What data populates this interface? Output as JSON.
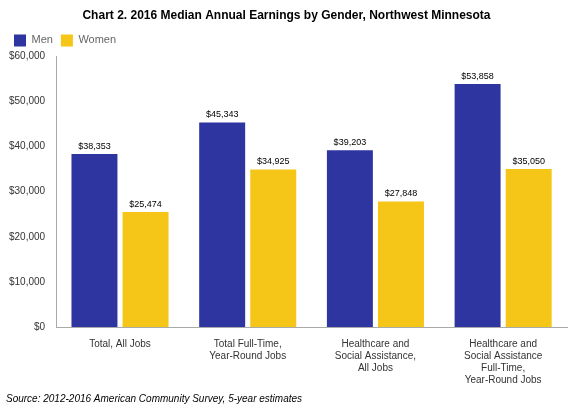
{
  "chart_data": {
    "type": "bar",
    "title": "Chart 2. 2016 Median Annual Earnings by Gender, Northwest Minnesota",
    "categories": [
      "Total, All Jobs",
      "Total Full-Time,\nYear-Round Jobs",
      "Healthcare and\nSocial Assistance,\nAll Jobs",
      "Healthcare and\nSocial Assistance\nFull-Time,\nYear-Round Jobs"
    ],
    "series": [
      {
        "name": "Men",
        "color": "#2E35A0",
        "values": [
          38353,
          45343,
          39203,
          53858
        ],
        "value_labels": [
          "$38,353",
          "$45,343",
          "$39,203",
          "$53,858"
        ]
      },
      {
        "name": "Women",
        "color": "#F5C518",
        "values": [
          25474,
          34925,
          27848,
          35050
        ],
        "value_labels": [
          "$25,474",
          "$34,925",
          "$27,848",
          "$35,050"
        ]
      }
    ],
    "ylim": [
      0,
      60000
    ],
    "yticks": [
      {
        "value": 0,
        "label": "$0"
      },
      {
        "value": 10000,
        "label": "$10,000"
      },
      {
        "value": 20000,
        "label": "$20,000"
      },
      {
        "value": 30000,
        "label": "$30,000"
      },
      {
        "value": 40000,
        "label": "$40,000"
      },
      {
        "value": 50000,
        "label": "$50,000"
      },
      {
        "value": 60000,
        "label": "$60,000"
      }
    ],
    "grid": false,
    "legend": "upper left",
    "data_labels": true,
    "source": "Source: 2012-2016 American Community Survey, 5-year estimates"
  }
}
